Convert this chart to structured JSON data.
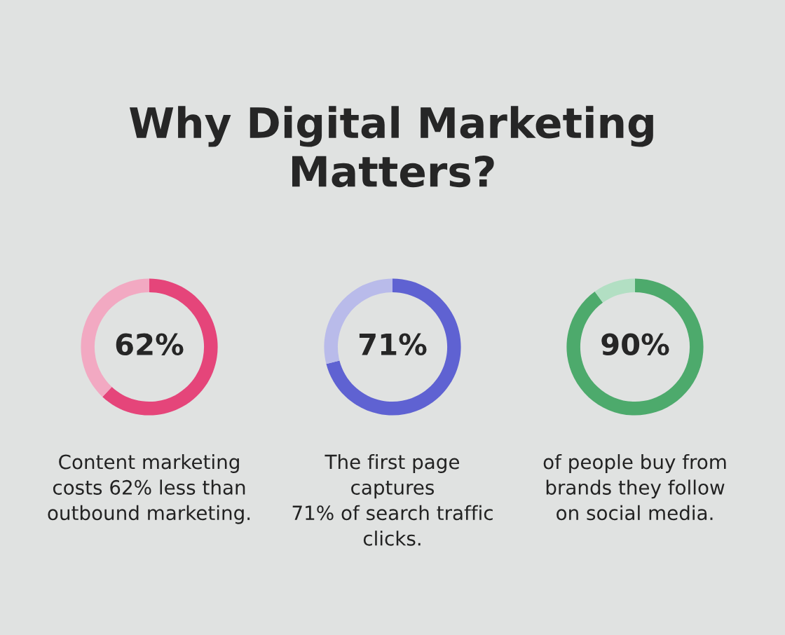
{
  "chart_data": [
    {
      "type": "donut",
      "title": "Why Digital Marketing\nMatters?",
      "categories": [
        null,
        null
      ],
      "values": [
        62,
        38
      ],
      "colors": [
        "#e5457a",
        "#f2a9c2"
      ],
      "annotations": [
        "62%",
        "Content marketing\ncosts 62% less than\noutbound marketing."
      ]
    },
    {
      "type": "donut",
      "categories": [
        null,
        null
      ],
      "values": [
        71,
        29
      ],
      "colors": [
        "#5f62d2",
        "#b9bbea"
      ],
      "annotations": [
        "71%",
        "The first page\ncaptures\n71% of search traffic\nclicks."
      ]
    },
    {
      "type": "donut",
      "categories": [
        null,
        null
      ],
      "values": [
        90,
        10
      ],
      "colors": [
        "#4daa6c",
        "#b2dfc3"
      ],
      "annotations": [
        "90%",
        "of people buy from\nbrands they follow\non social media."
      ]
    }
  ]
}
